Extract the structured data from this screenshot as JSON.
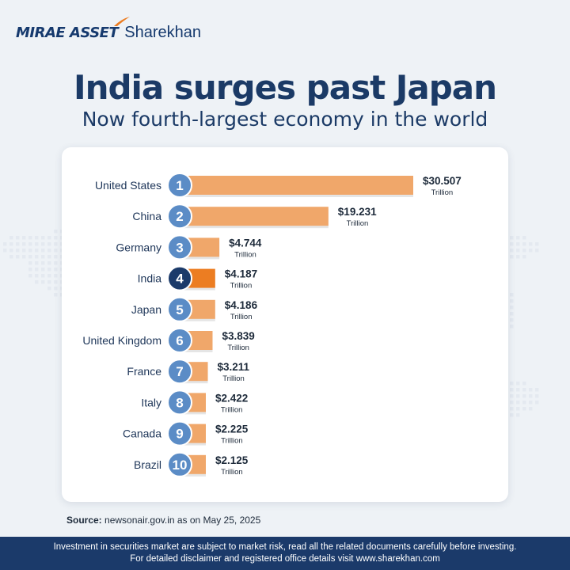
{
  "brand": {
    "name_a": "MIRAE ASSET",
    "name_b": "Sharekhan"
  },
  "header": {
    "title": "India surges past Japan",
    "subtitle": "Now fourth-largest economy in the world"
  },
  "source": {
    "label": "Source:",
    "text": "newsonair.gov.in as on May 25, 2025"
  },
  "footer": {
    "line1": "Investment in securities market are subject to market risk, read all the related documents carefully before investing.",
    "line2": "For detailed disclaimer and registered office details visit www.sharekhan.com"
  },
  "colors": {
    "bar": "#f0a76a",
    "bar_highlight": "#ec7d22",
    "badge": "#5b8cc6",
    "badge_highlight": "#1b3a6a",
    "text": "#1d3558"
  },
  "chart_data": {
    "type": "bar",
    "orientation": "horizontal",
    "categories": [
      "United States",
      "China",
      "Germany",
      "India",
      "Japan",
      "United Kingdom",
      "France",
      "Italy",
      "Canada",
      "Brazil"
    ],
    "ranks": [
      "1",
      "2",
      "3",
      "4",
      "5",
      "6",
      "7",
      "8",
      "9",
      "10"
    ],
    "values": [
      30.507,
      19.231,
      4.744,
      4.187,
      4.186,
      3.839,
      3.211,
      2.422,
      2.225,
      2.125
    ],
    "value_labels": [
      "$30.507",
      "$19.231",
      "$4.744",
      "$4.187",
      "$4.186",
      "$3.839",
      "$3.211",
      "$2.422",
      "$2.225",
      "$2.125"
    ],
    "unit_label": "Trillion",
    "highlight": "India",
    "title": "",
    "xlabel": "",
    "ylabel": ""
  }
}
